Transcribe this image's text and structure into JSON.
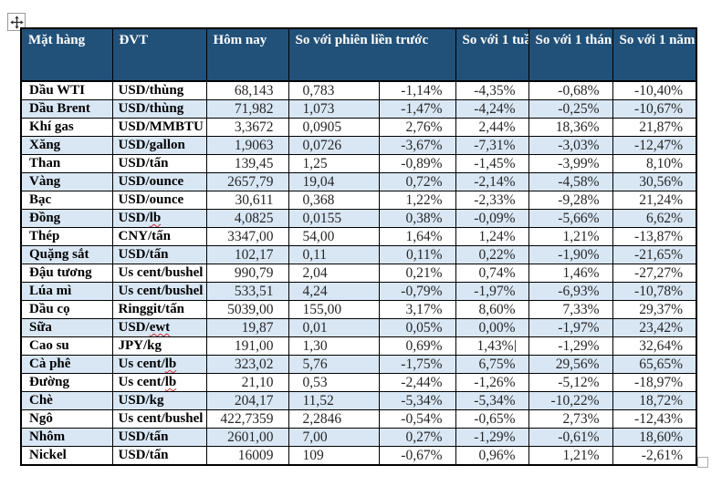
{
  "colors": {
    "header_bg": "#215179",
    "header_text": "#ffffff",
    "band_bg": "#d9e7f5",
    "border": "#000000",
    "squiggle": "#d13438"
  },
  "table": {
    "header_cells": [
      {
        "label": "Mặt hàng"
      },
      {
        "label": "ĐVT"
      },
      {
        "label": "Hôm nay"
      },
      {
        "label": "So với phiên liền trước"
      },
      {
        "label": "So với 1 tuần trước"
      },
      {
        "label": "So với 1 tháng trước"
      },
      {
        "label": "So với 1 năm trước"
      }
    ],
    "rows": [
      {
        "name": "Dầu WTI",
        "unit": "USD/thùng",
        "unit_flagged": "",
        "today": "68,143",
        "change": "0,783",
        "vs_session": "-1,14%",
        "vs_week": "-4,35%",
        "vs_month": "-0,68%",
        "vs_year": "-10,40%"
      },
      {
        "name": "Dầu Brent",
        "unit": "USD/thùng",
        "unit_flagged": "",
        "today": "71,982",
        "change": "1,073",
        "vs_session": "-1,47%",
        "vs_week": "-4,24%",
        "vs_month": "-0,25%",
        "vs_year": "-10,67%"
      },
      {
        "name": "Khí gas",
        "unit": "USD/MMBTU",
        "unit_flagged": "",
        "today": "3,3672",
        "change": "0,0905",
        "vs_session": "2,76%",
        "vs_week": "2,44%",
        "vs_month": "18,36%",
        "vs_year": "21,87%"
      },
      {
        "name": "Xăng",
        "unit": "USD/gallon",
        "unit_flagged": "",
        "today": "1,9063",
        "change": "0,0726",
        "vs_session": "-3,67%",
        "vs_week": "-7,31%",
        "vs_month": "-3,03%",
        "vs_year": "-12,47%"
      },
      {
        "name": "Than",
        "unit": "USD/tấn",
        "unit_flagged": "",
        "today": "139,45",
        "change": "1,25",
        "vs_session": "-0,89%",
        "vs_week": "-1,45%",
        "vs_month": "-3,99%",
        "vs_year": "8,10%"
      },
      {
        "name": "Vàng",
        "unit": "USD/ounce",
        "unit_flagged": "",
        "today": "2657,79",
        "change": "19,04",
        "vs_session": "0,72%",
        "vs_week": "-2,14%",
        "vs_month": "-4,58%",
        "vs_year": "30,56%"
      },
      {
        "name": "Bạc",
        "unit": "USD/ounce",
        "unit_flagged": "",
        "today": "30,611",
        "change": "0,368",
        "vs_session": "1,22%",
        "vs_week": "-2,33%",
        "vs_month": "-9,28%",
        "vs_year": "21,24%"
      },
      {
        "name": "Đồng",
        "unit": "USD/",
        "unit_flagged": "lb",
        "today": "4,0825",
        "change": "0,0155",
        "vs_session": "0,38%",
        "vs_week": "-0,09%",
        "vs_month": "-5,66%",
        "vs_year": "6,62%"
      },
      {
        "name": "Thép",
        "unit": "CNY/tấn",
        "unit_flagged": "",
        "today": "3347,00",
        "change": "54,00",
        "vs_session": "1,64%",
        "vs_week": "1,24%",
        "vs_month": "1,21%",
        "vs_year": "-13,87%"
      },
      {
        "name": "Quặng sắt",
        "unit": "USD/tấn",
        "unit_flagged": "",
        "today": "102,17",
        "change": "0,11",
        "vs_session": "0,11%",
        "vs_week": "0,22%",
        "vs_month": "-1,90%",
        "vs_year": "-21,65%"
      },
      {
        "name": "Đậu tương",
        "unit": "Us cent/bushel",
        "unit_flagged": "",
        "today": "990,79",
        "change": "2,04",
        "vs_session": "0,21%",
        "vs_week": "0,74%",
        "vs_month": "1,46%",
        "vs_year": "-27,27%"
      },
      {
        "name": "Lúa mì",
        "unit": "Us cent/bushel",
        "unit_flagged": "",
        "today": "533,51",
        "change": "4,24",
        "vs_session": "-0,79%",
        "vs_week": "-1,97%",
        "vs_month": "-6,93%",
        "vs_year": "-10,78%"
      },
      {
        "name": "Dầu cọ",
        "unit": "Ringgit/tấn",
        "unit_flagged": "",
        "today": "5039,00",
        "change": "155,00",
        "vs_session": "3,17%",
        "vs_week": "8,60%",
        "vs_month": "7,33%",
        "vs_year": "29,37%"
      },
      {
        "name": "Sữa",
        "unit": "USD/",
        "unit_flagged": "ewt",
        "today": "19,87",
        "change": "0,01",
        "vs_session": "0,05%",
        "vs_week": "0,00%",
        "vs_month": "-1,97%",
        "vs_year": "23,42%"
      },
      {
        "name": "Cao su",
        "unit": "JPY/kg",
        "unit_flagged": "",
        "today": "191,00",
        "change": "1,30",
        "vs_session": "0,69%",
        "vs_week": "1,43%",
        "vs_month": "-1,29%",
        "vs_year": "32,64%",
        "caret": true
      },
      {
        "name": "Cà phê",
        "unit": "Us cent/",
        "unit_flagged": "lb",
        "today": "323,02",
        "change": "5,76",
        "vs_session": "-1,75%",
        "vs_week": "6,75%",
        "vs_month": "29,56%",
        "vs_year": "65,65%"
      },
      {
        "name": "Đường",
        "unit": "Us cent/",
        "unit_flagged": "lb",
        "today": "21,10",
        "change": "0,53",
        "vs_session": "-2,44%",
        "vs_week": "-1,26%",
        "vs_month": "-5,12%",
        "vs_year": "-18,97%"
      },
      {
        "name": "Chè",
        "unit": "USD/kg",
        "unit_flagged": "",
        "today": "204,17",
        "change": "11,52",
        "vs_session": "-5,34%",
        "vs_week": "-5,34%",
        "vs_month": "-10,22%",
        "vs_year": "18,72%"
      },
      {
        "name": "Ngô",
        "unit": "Us cent/bushel",
        "unit_flagged": "",
        "today": "422,7359",
        "change": "2,2846",
        "vs_session": "-0,54%",
        "vs_week": "-0,65%",
        "vs_month": "2,73%",
        "vs_year": "-12,43%"
      },
      {
        "name": "Nhôm",
        "unit": "USD/tấn",
        "unit_flagged": "",
        "today": "2601,00",
        "change": "7,00",
        "vs_session": "0,27%",
        "vs_week": "-1,29%",
        "vs_month": "-0,61%",
        "vs_year": "18,60%"
      },
      {
        "name": "Nickel",
        "unit": "USD/tấn",
        "unit_flagged": "",
        "today": "16009",
        "change": "109",
        "vs_session": "-0,67%",
        "vs_week": "0,96%",
        "vs_month": "1,21%",
        "vs_year": "-2,61%"
      }
    ]
  }
}
